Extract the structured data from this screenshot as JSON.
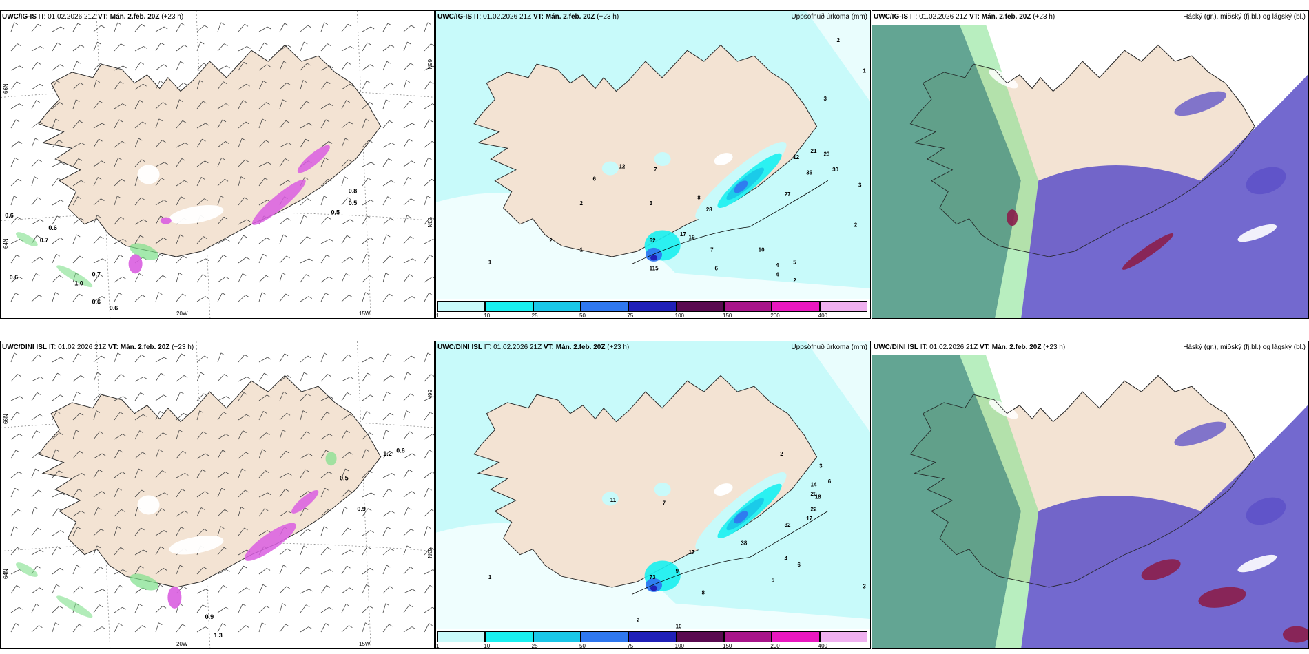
{
  "colors": {
    "land": "#f3e3d3",
    "coast": "#2a2a2a",
    "grid": "#888888",
    "wind_barb": "#444444",
    "ice_green": "#7ee08a",
    "snow_magenta": "#d95ee0",
    "high_cloud": "#3c8f78",
    "mid_cloud": "#5b4fc7",
    "low_cloud": "#8b1e4a",
    "precip_scale": [
      "#c8fafa",
      "#19f0f0",
      "#1ac7e8",
      "#2f78f0",
      "#2020b8",
      "#5a0a50",
      "#a8158a",
      "#ea18c0",
      "#f0b0f0"
    ]
  },
  "rows": [
    {
      "model_label": "UWC/IG-IS",
      "panels": [
        {
          "header": {
            "model": "UWC/IG-IS",
            "it": "IT: 01.02.2026 21Z",
            "vt_label": "VT:",
            "vt": "Mán. 2.feb. 20Z",
            "offset": "(+23 h)"
          },
          "lon_labels": [
            "20W",
            "15W"
          ],
          "lat_labels": [
            "66N",
            "64N",
            "63N",
            "66N"
          ],
          "values": [
            "0.6",
            "0.6",
            "0.7",
            "0.7",
            "1.0",
            "0.6",
            "0.6",
            "0.6",
            "0.5",
            "0.5",
            "0.8"
          ]
        },
        {
          "header": {
            "model": "UWC/IG-IS",
            "it": "IT: 01.02.2026 21Z",
            "vt_label": "VT:",
            "vt": "Mán. 2.feb. 20Z",
            "offset": "(+23 h)"
          },
          "title_right": "Uppsöfnuð úrkoma (mm)",
          "values": [
            "2",
            "1",
            "2",
            "4",
            "2",
            "12",
            "21",
            "23",
            "35",
            "30",
            "27",
            "28",
            "19",
            "17",
            "62",
            "115",
            "7",
            "12",
            "6",
            "3",
            "2",
            "1",
            "10",
            "5",
            "3",
            "8",
            "6",
            "7",
            "4",
            "3",
            "2",
            "1"
          ]
        },
        {
          "header": {
            "model": "UWC/IG-IS",
            "it": "IT: 01.02.2026 21Z",
            "vt_label": "VT:",
            "vt": "Mán. 2.feb. 20Z",
            "offset": "(+23 h)"
          },
          "title_right": "Háský (gr.), miðský (fj.bl.) og lágský (bl.)"
        }
      ]
    },
    {
      "model_label": "UWC/DINI ISL",
      "panels": [
        {
          "header": {
            "model": "UWC/DINI ISL",
            "it": "IT: 01.02.2026 21Z",
            "vt_label": "VT:",
            "vt": "Mán. 2.feb. 20Z",
            "offset": "(+23 h)"
          },
          "lon_labels": [
            "20W",
            "15W"
          ],
          "lat_labels": [
            "66N",
            "64N",
            "63N",
            "66N"
          ],
          "values": [
            "0.6",
            "1.2",
            "0.9",
            "1.3",
            "0.5",
            "0.9"
          ]
        },
        {
          "header": {
            "model": "UWC/DINI ISL",
            "it": "IT: 01.02.2026 21Z",
            "vt_label": "VT:",
            "vt": "Mán. 2.feb. 20Z",
            "offset": "(+23 h)"
          },
          "title_right": "Uppsöfnuð úrkoma (mm)",
          "values": [
            "2",
            "3",
            "6",
            "14",
            "20",
            "18",
            "22",
            "17",
            "32",
            "38",
            "73",
            "11",
            "7",
            "17",
            "8",
            "9",
            "5",
            "4",
            "3",
            "1",
            "2",
            "6",
            "10"
          ]
        },
        {
          "header": {
            "model": "UWC/DINI ISL",
            "it": "IT: 01.02.2026 21Z",
            "vt_label": "VT:",
            "vt": "Mán. 2.feb. 20Z",
            "offset": "(+23 h)"
          },
          "title_right": "Háský (gr.), miðský (fj.bl.) og lágský (bl.)"
        }
      ]
    }
  ],
  "precip_ticks": [
    "1",
    "10",
    "25",
    "50",
    "75",
    "100",
    "150",
    "200",
    "400"
  ]
}
